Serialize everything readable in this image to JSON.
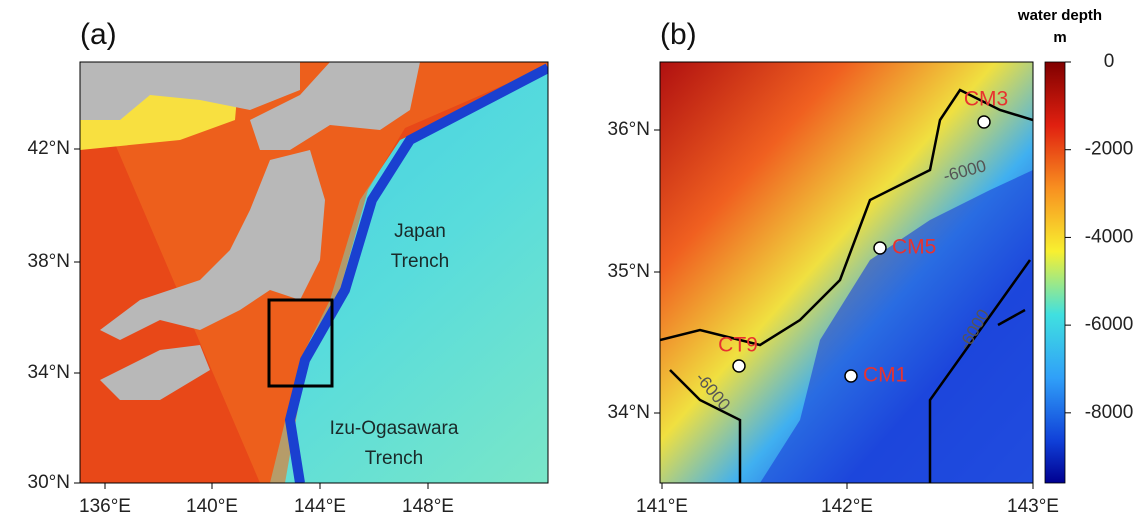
{
  "panel_a": {
    "label": "(a)",
    "xticks": [
      "136°E",
      "140°E",
      "144°E",
      "148°E"
    ],
    "yticks": [
      "42°N",
      "38°N",
      "34°N",
      "30°N"
    ],
    "japan_trench": [
      "Japan",
      "Trench"
    ],
    "izu_trench": [
      "Izu-Ogasawara",
      "Trench"
    ]
  },
  "panel_b": {
    "label": "(b)",
    "xticks": [
      "141°E",
      "142°E",
      "143°E"
    ],
    "yticks": [
      "36°N",
      "35°N",
      "34°N"
    ],
    "stations": [
      "CM3",
      "CM5",
      "CT9",
      "CM1"
    ],
    "contour_labels": [
      "-6000",
      "-6000",
      "-6000"
    ]
  },
  "colorbar": {
    "title": "water depth",
    "unit": "m",
    "lim": [
      -9600,
      0
    ],
    "ticks": [
      0,
      -2000,
      -4000,
      -6000,
      -8000
    ]
  }
}
